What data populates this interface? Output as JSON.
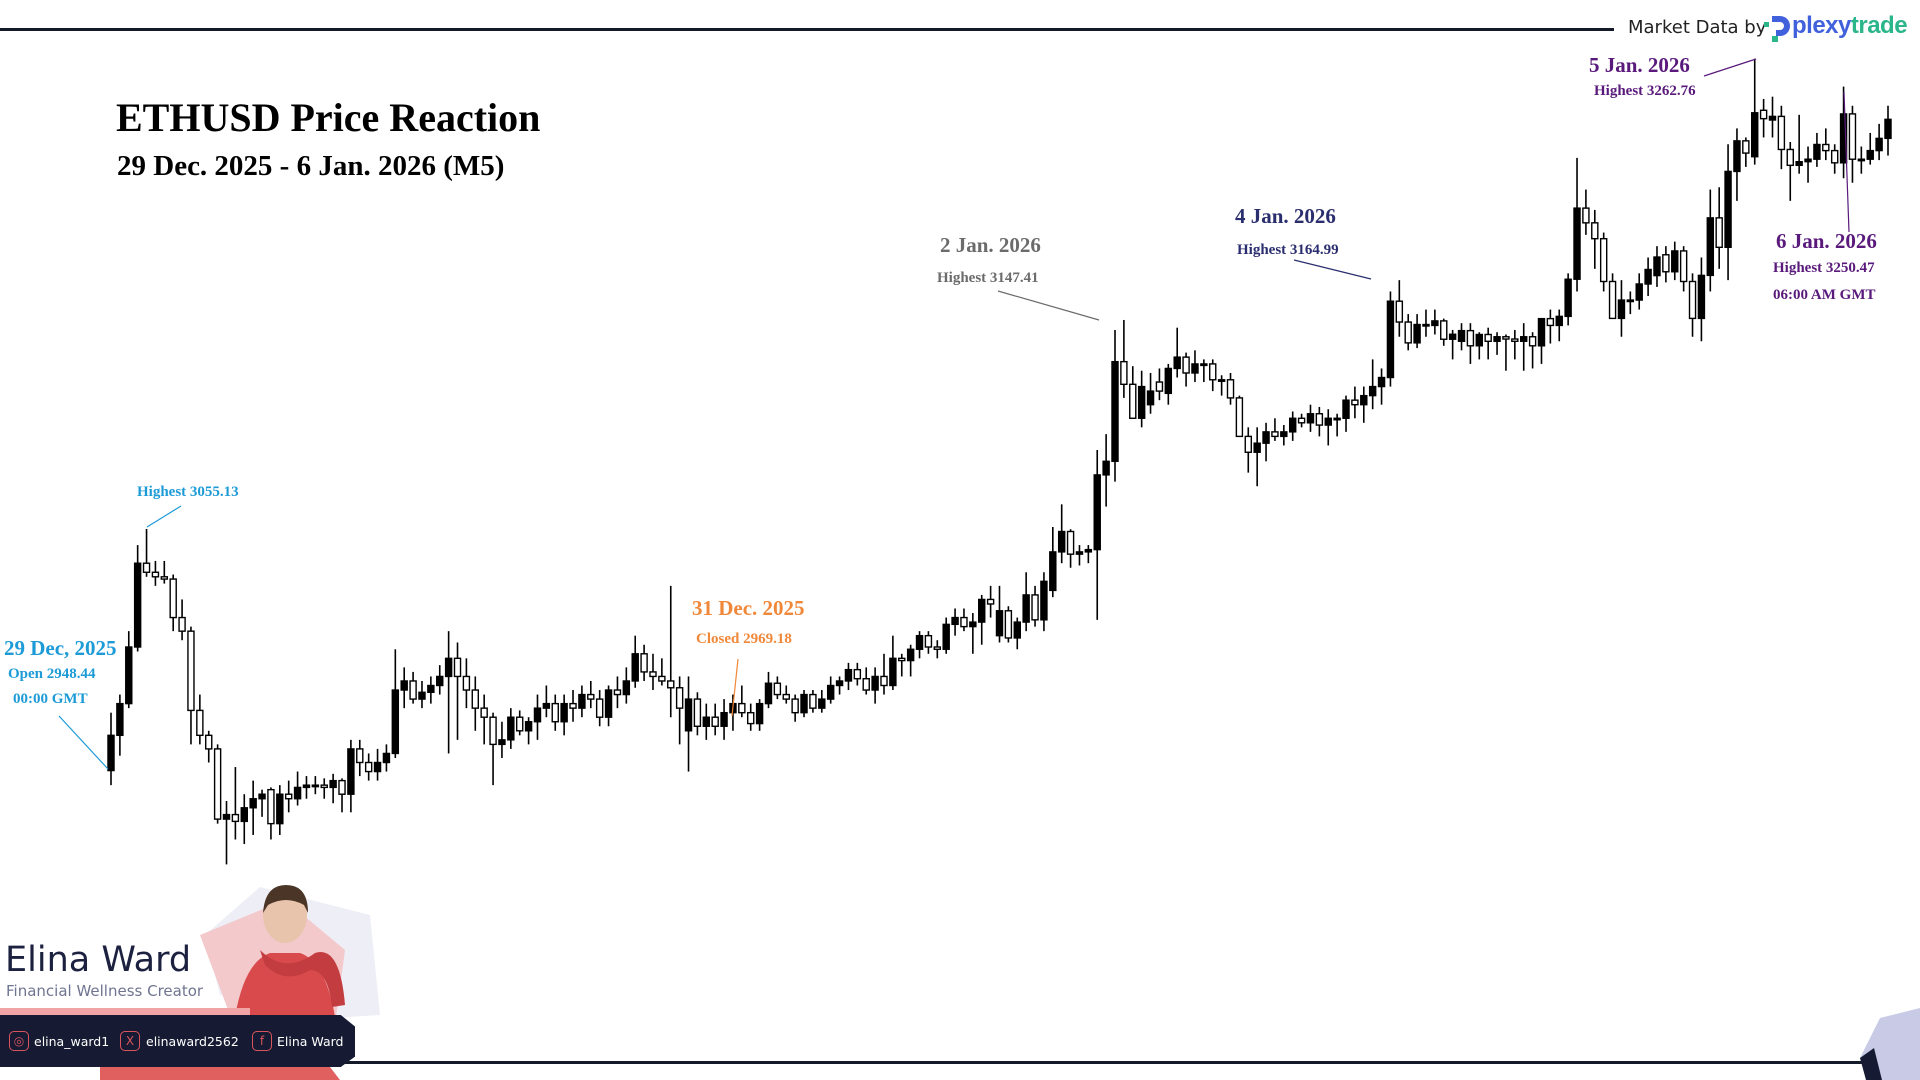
{
  "header": {
    "title": "ETHUSD Price Reaction",
    "subtitle": "29 Dec. 2025 - 6 Jan. 2026 (M5)",
    "market_data_label": "Market Data by",
    "provider_logo": {
      "part1": "plexy",
      "part2": "trade",
      "colors": [
        "#4160dc",
        "#2bb58a"
      ]
    }
  },
  "annotations": {
    "dec29": {
      "date": "29 Dec, 2025",
      "value": "Open 2948.44",
      "time": "00:00 GMT",
      "color": "#1d9bd7"
    },
    "dec29_high": {
      "value": "Highest 3055.13",
      "color": "#1d9bd7"
    },
    "dec31": {
      "date": "31 Dec. 2025",
      "value": "Closed 2969.18",
      "color": "#f0883a"
    },
    "jan2": {
      "date": "2 Jan. 2026",
      "value": "Highest 3147.41",
      "color": "#6b6b6b"
    },
    "jan4": {
      "date": "4 Jan. 2026",
      "value": "Highest 3164.99",
      "color": "#2b2e6e"
    },
    "jan5": {
      "date": "5 Jan. 2026",
      "value": "Highest 3262.76",
      "color": "#5a1a7c"
    },
    "jan6": {
      "date": "6 Jan. 2026",
      "value": "Highest 3250.47",
      "time": "06:00 AM GMT",
      "color": "#5a1a7c"
    }
  },
  "branding": {
    "name": "Elina Ward",
    "role": "Financial Wellness Creator",
    "socials": [
      {
        "icon": "instagram-icon",
        "handle": "elina_ward1"
      },
      {
        "icon": "x-icon",
        "handle": "elinaward2562"
      },
      {
        "icon": "facebook-icon",
        "handle": "Elina Ward"
      }
    ]
  },
  "chart_data": {
    "type": "candlestick",
    "symbol": "ETHUSD",
    "timeframe": "M5",
    "ylim": [
      2811.8,
      3288.7
    ],
    "grid": false,
    "bullish_style": "filled black",
    "bearish_style": "hollow white",
    "candles_ohlc": [
      [
        2948.44,
        2974,
        2942,
        2964
      ],
      [
        2964,
        2982,
        2955,
        2978
      ],
      [
        2978,
        3010,
        2976,
        3003
      ],
      [
        3003,
        3048,
        3001,
        3040
      ],
      [
        3040,
        3055.13,
        3034,
        3036
      ],
      [
        3036,
        3041,
        3030,
        3034
      ],
      [
        3034,
        3041,
        3031,
        3033
      ],
      [
        3033,
        3035,
        3010,
        3016
      ],
      [
        3016,
        3024,
        3006,
        3010
      ],
      [
        3010,
        3012,
        2960,
        2975
      ],
      [
        2975,
        2982,
        2960,
        2964
      ],
      [
        2964,
        2966,
        2952,
        2958
      ],
      [
        2958,
        2960,
        2925,
        2927
      ],
      [
        2927,
        2935,
        2907,
        2929
      ],
      [
        2929,
        2950,
        2918,
        2926
      ],
      [
        2926,
        2938,
        2916,
        2932
      ],
      [
        2932,
        2944,
        2920,
        2936
      ],
      [
        2936,
        2940,
        2928,
        2938
      ],
      [
        2940,
        2941,
        2918,
        2925
      ],
      [
        2925,
        2942,
        2920,
        2938
      ],
      [
        2938,
        2944,
        2930,
        2936
      ],
      [
        2936,
        2948,
        2933,
        2941
      ],
      [
        2941,
        2946,
        2936,
        2942
      ],
      [
        2942,
        2946,
        2938,
        2942
      ],
      [
        2942,
        2945,
        2936,
        2941
      ],
      [
        2941,
        2947,
        2934,
        2944
      ],
      [
        2944,
        2945,
        2930,
        2938
      ],
      [
        2938,
        2962,
        2930,
        2958
      ],
      [
        2958,
        2962,
        2946,
        2952
      ],
      [
        2952,
        2956,
        2944,
        2948
      ],
      [
        2948,
        2958,
        2944,
        2952
      ],
      [
        2952,
        2960,
        2948,
        2956
      ],
      [
        2956,
        3002,
        2954,
        2984
      ],
      [
        2984,
        2994,
        2976,
        2988
      ],
      [
        2988,
        2992,
        2978,
        2980
      ],
      [
        2980,
        2988,
        2976,
        2983
      ],
      [
        2983,
        2990,
        2978,
        2986
      ],
      [
        2986,
        2995,
        2982,
        2990
      ],
      [
        2990,
        3010,
        2956,
        2998
      ],
      [
        2998,
        3005,
        2962,
        2990
      ],
      [
        2990,
        2998,
        2976,
        2984
      ],
      [
        2984,
        2990,
        2966,
        2976
      ],
      [
        2976,
        2982,
        2960,
        2972
      ],
      [
        2972,
        2974,
        2942,
        2960
      ],
      [
        2960,
        2970,
        2954,
        2962
      ],
      [
        2962,
        2976,
        2958,
        2972
      ],
      [
        2972,
        2975,
        2964,
        2966
      ],
      [
        2966,
        2972,
        2960,
        2970
      ],
      [
        2970,
        2982,
        2962,
        2976
      ],
      [
        2976,
        2986,
        2972,
        2978
      ],
      [
        2978,
        2982,
        2966,
        2970
      ],
      [
        2970,
        2982,
        2964,
        2978
      ],
      [
        2978,
        2984,
        2970,
        2976
      ],
      [
        2976,
        2986,
        2972,
        2982
      ],
      [
        2982,
        2988,
        2976,
        2980
      ],
      [
        2980,
        2984,
        2968,
        2972
      ],
      [
        2972,
        2986,
        2968,
        2984
      ],
      [
        2984,
        2990,
        2976,
        2982
      ],
      [
        2982,
        2994,
        2978,
        2988
      ],
      [
        2988,
        3008,
        2985,
        3000
      ],
      [
        3000,
        3004,
        2988,
        2992
      ],
      [
        2992,
        3000,
        2984,
        2990
      ],
      [
        2990,
        2998,
        2986,
        2988
      ],
      [
        2988,
        3030,
        2972,
        2985
      ],
      [
        2985,
        2990,
        2960,
        2976
      ],
      [
        2966,
        2990,
        2948,
        2980
      ],
      [
        2980,
        2983,
        2964,
        2968
      ],
      [
        2968,
        2978,
        2962,
        2972
      ],
      [
        2972,
        2978,
        2964,
        2968
      ],
      [
        2968,
        2980,
        2962,
        2974
      ],
      [
        2974,
        2982,
        2966,
        2978
      ],
      [
        2978,
        2986,
        2972,
        2974
      ],
      [
        2974,
        2978,
        2966,
        2969.18
      ],
      [
        2969.18,
        2980,
        2966,
        2978
      ],
      [
        2978,
        2992,
        2976,
        2987
      ],
      [
        2987,
        2990,
        2980,
        2982
      ],
      [
        2982,
        2986,
        2978,
        2980
      ],
      [
        2980,
        2982,
        2970,
        2974
      ],
      [
        2974,
        2984,
        2972,
        2982
      ],
      [
        2982,
        2984,
        2974,
        2976
      ],
      [
        2976,
        2984,
        2974,
        2980
      ],
      [
        2980,
        2990,
        2978,
        2986
      ],
      [
        2986,
        2990,
        2982,
        2988
      ],
      [
        2988,
        2996,
        2984,
        2993
      ],
      [
        2993,
        2996,
        2986,
        2989
      ],
      [
        2989,
        2994,
        2982,
        2984
      ],
      [
        2984,
        2994,
        2978,
        2990
      ],
      [
        2990,
        3000,
        2982,
        2986
      ],
      [
        2986,
        3008,
        2984,
        2998
      ],
      [
        2998,
        3000,
        2990,
        2997
      ],
      [
        2997,
        3004,
        2990,
        3002
      ],
      [
        3002,
        3010,
        2998,
        3008
      ],
      [
        3008,
        3010,
        3000,
        3003
      ],
      [
        3003,
        3006,
        2998,
        3002
      ],
      [
        3002,
        3016,
        3000,
        3013
      ],
      [
        3013,
        3020,
        3008,
        3016
      ],
      [
        3016,
        3020,
        3010,
        3012
      ],
      [
        3012,
        3018,
        3000,
        3014
      ],
      [
        3014,
        3026,
        3004,
        3024
      ],
      [
        3024,
        3030,
        3016,
        3022
      ],
      [
        3008,
        3030,
        3005,
        3019
      ],
      [
        3019,
        3021,
        3005,
        3007
      ],
      [
        3007,
        3016,
        3002,
        3014
      ],
      [
        3014,
        3036,
        3010,
        3026
      ],
      [
        3026,
        3030,
        3012,
        3015
      ],
      [
        3015,
        3036,
        3010,
        3032
      ],
      [
        3028,
        3056,
        3025,
        3045
      ],
      [
        3045,
        3066,
        3040,
        3054
      ],
      [
        3054,
        3055,
        3038,
        3044
      ],
      [
        3044,
        3048,
        3039,
        3045
      ],
      [
        3045,
        3048,
        3040,
        3046
      ],
      [
        3046,
        3090,
        3015,
        3079
      ],
      [
        3079,
        3097,
        3065,
        3085
      ],
      [
        3085,
        3143,
        3076,
        3129
      ],
      [
        3129,
        3147.41,
        3113,
        3119
      ],
      [
        3119,
        3127,
        3104,
        3104
      ],
      [
        3104,
        3125,
        3100,
        3118
      ],
      [
        3110,
        3124,
        3106,
        3116
      ],
      [
        3120,
        3126,
        3112,
        3116
      ],
      [
        3115,
        3128,
        3110,
        3126
      ],
      [
        3126,
        3144,
        3122,
        3131
      ],
      [
        3131,
        3133,
        3118,
        3124
      ],
      [
        3124,
        3134,
        3120,
        3128
      ],
      [
        3128,
        3130,
        3120,
        3128
      ],
      [
        3128,
        3130,
        3116,
        3121
      ],
      [
        3121,
        3123,
        3114,
        3121
      ],
      [
        3121,
        3124,
        3110,
        3113
      ],
      [
        3113,
        3114,
        3096,
        3096
      ],
      [
        3096,
        3100,
        3080,
        3089
      ],
      [
        3089,
        3100,
        3074,
        3093
      ],
      [
        3093,
        3102,
        3085,
        3098
      ],
      [
        3098,
        3104,
        3094,
        3096
      ],
      [
        3096,
        3101,
        3092,
        3098
      ],
      [
        3098,
        3107,
        3094,
        3104
      ],
      [
        3104,
        3106,
        3100,
        3102
      ],
      [
        3102,
        3110,
        3098,
        3106
      ],
      [
        3106,
        3109,
        3096,
        3101
      ],
      [
        3101,
        3108,
        3092,
        3104
      ],
      [
        3104,
        3106,
        3096,
        3104
      ],
      [
        3104,
        3114,
        3098,
        3112
      ],
      [
        3112,
        3118,
        3104,
        3110
      ],
      [
        3110,
        3118,
        3102,
        3114
      ],
      [
        3114,
        3130,
        3108,
        3118
      ],
      [
        3118,
        3126,
        3110,
        3122
      ],
      [
        3122,
        3160,
        3118,
        3155.7
      ],
      [
        3155.7,
        3164.99,
        3140,
        3146.5
      ],
      [
        3146.5,
        3150,
        3134,
        3137.3
      ],
      [
        3137.3,
        3150,
        3135,
        3145.4
      ],
      [
        3145.4,
        3152,
        3140,
        3145.4
      ],
      [
        3145,
        3152,
        3141,
        3147
      ],
      [
        3147,
        3148,
        3136,
        3138.9
      ],
      [
        3138.9,
        3143,
        3130,
        3141.1
      ],
      [
        3138,
        3146,
        3134,
        3142.7
      ],
      [
        3142.7,
        3146,
        3128,
        3136
      ],
      [
        3136,
        3142,
        3130,
        3141
      ],
      [
        3141,
        3144,
        3130,
        3138
      ],
      [
        3138,
        3142,
        3132,
        3140
      ],
      [
        3140,
        3141,
        3125,
        3139
      ],
      [
        3139,
        3143,
        3130,
        3138
      ],
      [
        3138,
        3146,
        3125,
        3140
      ],
      [
        3140,
        3142,
        3126,
        3136
      ],
      [
        3136,
        3148,
        3128,
        3148
      ],
      [
        3148,
        3152,
        3137,
        3145
      ],
      [
        3145,
        3152,
        3138,
        3149
      ],
      [
        3149,
        3168,
        3145,
        3165.4
      ],
      [
        3165.4,
        3219,
        3160,
        3196.8
      ],
      [
        3196.8,
        3205,
        3185,
        3190.3
      ],
      [
        3190.3,
        3196,
        3170,
        3183.3
      ],
      [
        3183.3,
        3186,
        3160,
        3164.4
      ],
      [
        3164.4,
        3168,
        3148,
        3148.1
      ],
      [
        3148.1,
        3165,
        3140,
        3156.2
      ],
      [
        3156.2,
        3160,
        3150,
        3156.2
      ],
      [
        3156.2,
        3168,
        3152,
        3163.3
      ],
      [
        3163.3,
        3175,
        3158,
        3169.7
      ],
      [
        3167,
        3180,
        3162,
        3175.2
      ],
      [
        3176.2,
        3180,
        3164,
        3168.7
      ],
      [
        3168.7,
        3182,
        3165,
        3177.9
      ],
      [
        3177.9,
        3180,
        3160,
        3164.4
      ],
      [
        3164.4,
        3168,
        3140,
        3148.1
      ],
      [
        3148.1,
        3175,
        3138,
        3167.1
      ],
      [
        3167.1,
        3205,
        3160,
        3192.5
      ],
      [
        3192.5,
        3206,
        3170,
        3179.5
      ],
      [
        3179.5,
        3225,
        3165,
        3213.0
      ],
      [
        3213,
        3232,
        3200,
        3226.5
      ],
      [
        3226.5,
        3228,
        3215,
        3221.1
      ],
      [
        3219.5,
        3262.76,
        3216,
        3238.9
      ],
      [
        3240,
        3245,
        3228,
        3236.3
      ],
      [
        3235.7,
        3246,
        3228,
        3237.3
      ],
      [
        3237.3,
        3242,
        3214,
        3222.7
      ],
      [
        3222.7,
        3226,
        3200,
        3215.7
      ],
      [
        3215.7,
        3238,
        3212,
        3217.3
      ],
      [
        3217.3,
        3224,
        3208,
        3218.4
      ],
      [
        3218.4,
        3230,
        3215,
        3224.9
      ],
      [
        3224.9,
        3232,
        3218,
        3222.2
      ],
      [
        3222.2,
        3225,
        3212,
        3216.8
      ],
      [
        3216.8,
        3250.47,
        3210,
        3238.4
      ],
      [
        3238.4,
        3242,
        3208,
        3218.4
      ],
      [
        3218.4,
        3224,
        3212,
        3218.4
      ],
      [
        3218.4,
        3230,
        3216,
        3222.2
      ],
      [
        3222.2,
        3234,
        3218,
        3227.6
      ],
      [
        3227.6,
        3242,
        3220,
        3236
      ]
    ]
  }
}
